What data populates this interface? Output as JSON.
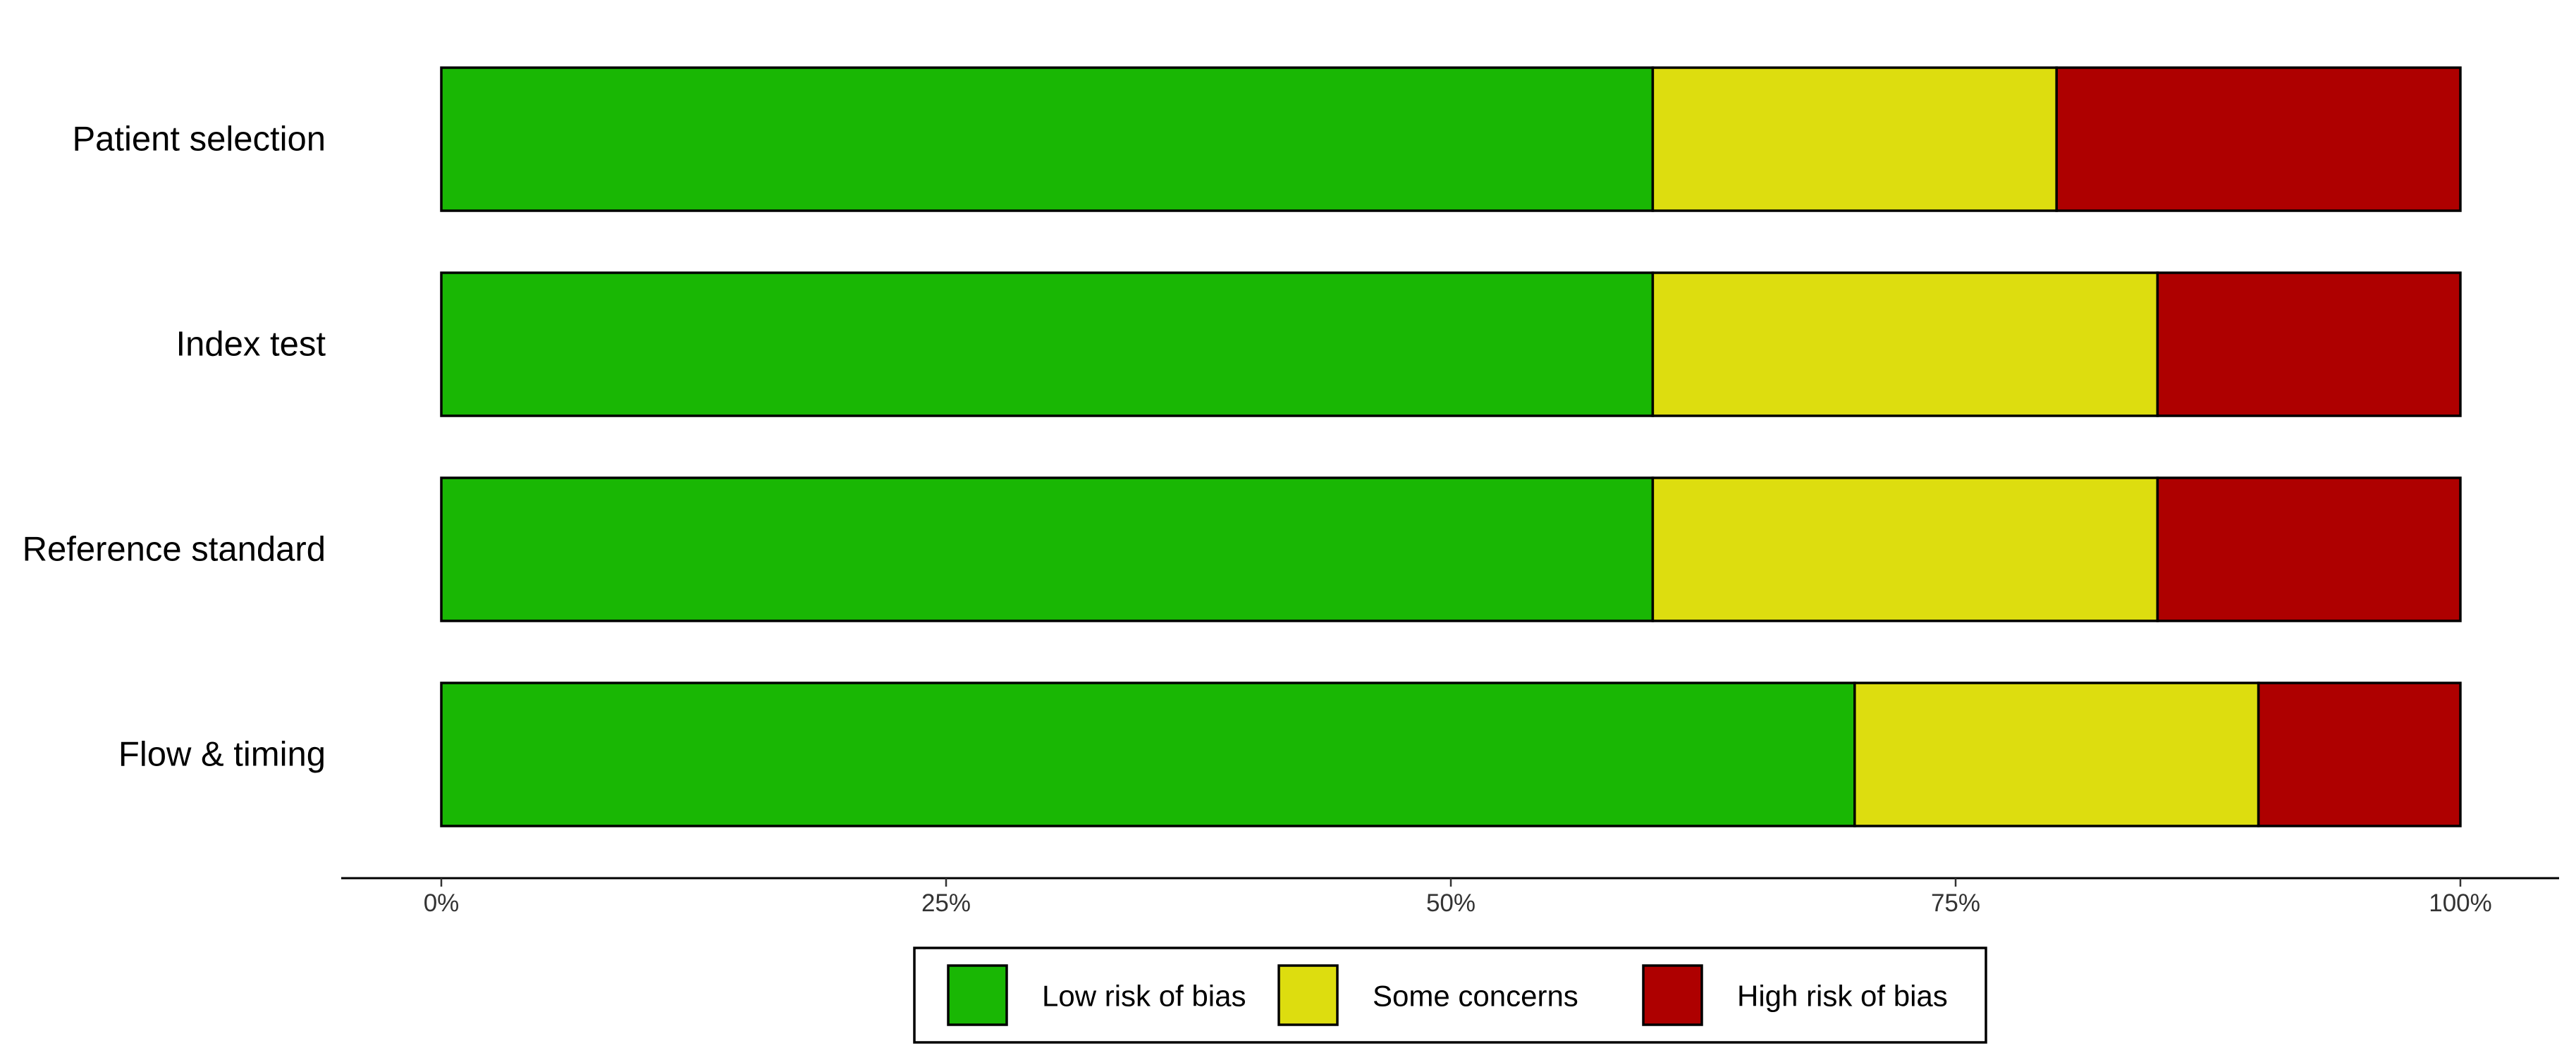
{
  "chart_data": {
    "type": "bar",
    "orientation": "horizontal",
    "stacked": true,
    "normalized": true,
    "categories": [
      "Patient selection",
      "Index test",
      "Reference standard",
      "Flow & timing"
    ],
    "series": [
      {
        "name": "Low risk of bias",
        "color": "#19b704",
        "values": [
          60,
          60,
          60,
          70
        ]
      },
      {
        "name": "Some concerns",
        "color": "#dddd0f",
        "values": [
          20,
          25,
          25,
          20
        ]
      },
      {
        "name": "High risk of bias",
        "color": "#ae0000",
        "values": [
          20,
          15,
          15,
          10
        ]
      }
    ],
    "xlim": [
      0,
      100
    ],
    "xticks": [
      0,
      25,
      50,
      75,
      100
    ],
    "xtick_labels": [
      "0%",
      "25%",
      "50%",
      "75%",
      "100%"
    ],
    "title": "",
    "xlabel": "",
    "ylabel": "",
    "grid": false,
    "legend": {
      "position": "bottom",
      "entries": [
        "Low risk of bias",
        "Some concerns",
        "High risk of bias"
      ]
    }
  }
}
